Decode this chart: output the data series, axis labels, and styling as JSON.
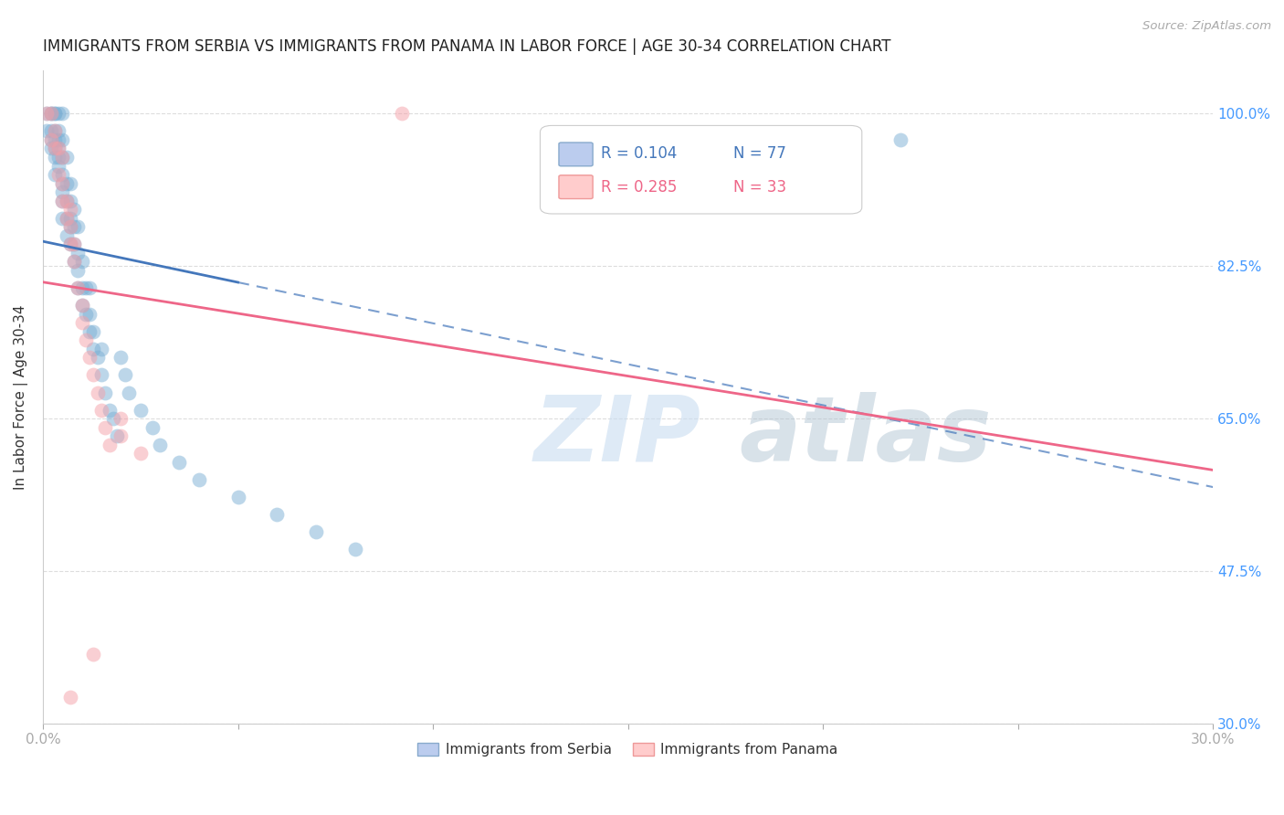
{
  "title": "IMMIGRANTS FROM SERBIA VS IMMIGRANTS FROM PANAMA IN LABOR FORCE | AGE 30-34 CORRELATION CHART",
  "source": "Source: ZipAtlas.com",
  "ylabel": "In Labor Force | Age 30-34",
  "xlim": [
    0.0,
    0.3
  ],
  "ylim": [
    0.3,
    1.05
  ],
  "xticks": [
    0.0,
    0.05,
    0.1,
    0.15,
    0.2,
    0.25,
    0.3
  ],
  "xticklabels": [
    "0.0%",
    "",
    "",
    "",
    "",
    "",
    "30.0%"
  ],
  "yticks": [
    0.3,
    0.475,
    0.65,
    0.825,
    1.0
  ],
  "yticklabels": [
    "30.0%",
    "47.5%",
    "65.0%",
    "82.5%",
    "100.0%"
  ],
  "R_serbia": 0.104,
  "N_serbia": 77,
  "R_panama": 0.285,
  "N_panama": 33,
  "serbia_color": "#7BAFD4",
  "panama_color": "#F4A0A8",
  "serbia_line_color": "#4477BB",
  "panama_line_color": "#EE6688",
  "background_color": "#FFFFFF",
  "grid_color": "#DDDDDD",
  "title_color": "#222222",
  "right_tick_color": "#4499FF",
  "serbia_x": [
    0.001,
    0.001,
    0.002,
    0.002,
    0.002,
    0.002,
    0.002,
    0.003,
    0.003,
    0.003,
    0.003,
    0.003,
    0.003,
    0.003,
    0.004,
    0.004,
    0.004,
    0.004,
    0.004,
    0.004,
    0.005,
    0.005,
    0.005,
    0.005,
    0.005,
    0.005,
    0.005,
    0.005,
    0.006,
    0.006,
    0.006,
    0.006,
    0.006,
    0.007,
    0.007,
    0.007,
    0.007,
    0.007,
    0.008,
    0.008,
    0.008,
    0.008,
    0.009,
    0.009,
    0.009,
    0.009,
    0.01,
    0.01,
    0.01,
    0.011,
    0.011,
    0.012,
    0.012,
    0.012,
    0.013,
    0.013,
    0.014,
    0.015,
    0.015,
    0.016,
    0.017,
    0.018,
    0.019,
    0.02,
    0.021,
    0.022,
    0.025,
    0.028,
    0.03,
    0.035,
    0.04,
    0.05,
    0.06,
    0.07,
    0.08,
    0.18,
    0.22
  ],
  "serbia_y": [
    0.98,
    1.0,
    0.96,
    0.97,
    0.98,
    1.0,
    1.0,
    0.93,
    0.95,
    0.96,
    0.97,
    0.98,
    1.0,
    1.0,
    0.94,
    0.95,
    0.96,
    0.97,
    0.98,
    1.0,
    0.88,
    0.9,
    0.91,
    0.92,
    0.93,
    0.95,
    0.97,
    1.0,
    0.86,
    0.88,
    0.9,
    0.92,
    0.95,
    0.85,
    0.87,
    0.88,
    0.9,
    0.92,
    0.83,
    0.85,
    0.87,
    0.89,
    0.8,
    0.82,
    0.84,
    0.87,
    0.78,
    0.8,
    0.83,
    0.77,
    0.8,
    0.75,
    0.77,
    0.8,
    0.73,
    0.75,
    0.72,
    0.7,
    0.73,
    0.68,
    0.66,
    0.65,
    0.63,
    0.72,
    0.7,
    0.68,
    0.66,
    0.64,
    0.62,
    0.6,
    0.58,
    0.56,
    0.54,
    0.52,
    0.5,
    0.97,
    0.97
  ],
  "panama_x": [
    0.001,
    0.002,
    0.002,
    0.003,
    0.003,
    0.004,
    0.004,
    0.005,
    0.005,
    0.005,
    0.006,
    0.006,
    0.007,
    0.007,
    0.007,
    0.008,
    0.008,
    0.009,
    0.01,
    0.01,
    0.011,
    0.012,
    0.013,
    0.014,
    0.015,
    0.016,
    0.017,
    0.02,
    0.02,
    0.025,
    0.092,
    0.013,
    0.007
  ],
  "panama_y": [
    1.0,
    0.97,
    1.0,
    0.96,
    0.98,
    0.93,
    0.96,
    0.9,
    0.92,
    0.95,
    0.88,
    0.9,
    0.85,
    0.87,
    0.89,
    0.83,
    0.85,
    0.8,
    0.76,
    0.78,
    0.74,
    0.72,
    0.7,
    0.68,
    0.66,
    0.64,
    0.62,
    0.65,
    0.63,
    0.61,
    1.0,
    0.38,
    0.33
  ]
}
